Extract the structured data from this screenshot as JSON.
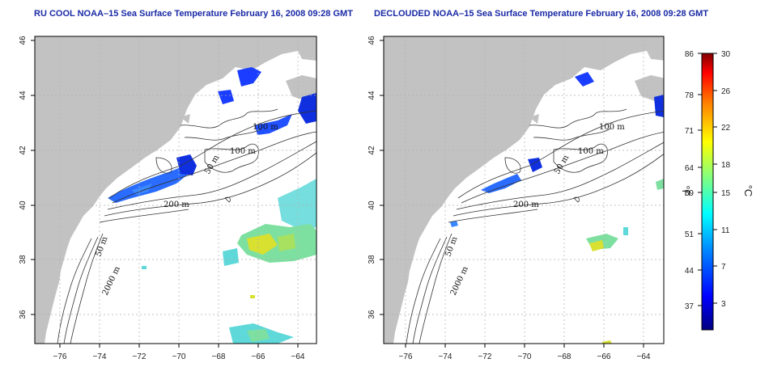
{
  "panels": [
    {
      "title": "RU COOL NOAA–15 Sea Surface Temperature February 16, 2008 09:28 GMT",
      "contour_labels": [
        "100 m",
        "100 m",
        "50 m",
        "200 m",
        "50 m",
        "2000 m"
      ]
    },
    {
      "title": "DECLOUDED NOAA–15 Sea Surface Temperature February 16, 2008 09:28 GMT",
      "contour_labels": [
        "100 m",
        "100 m",
        "50 m",
        "200 m",
        "50 m",
        "2000 m"
      ]
    }
  ],
  "axes": {
    "x_ticks": [
      "−76",
      "−74",
      "−72",
      "−70",
      "−68",
      "−66",
      "−64"
    ],
    "y_ticks": [
      "36",
      "38",
      "40",
      "42",
      "44",
      "46"
    ]
  },
  "colorbar": {
    "fahrenheit_ticks": [
      "86",
      "78",
      "71",
      "64",
      "59",
      "51",
      "44",
      "37"
    ],
    "celsius_ticks": [
      "30",
      "26",
      "22",
      "18",
      "15",
      "11",
      "7",
      "3"
    ],
    "unit_f": "°F",
    "unit_c": "°C",
    "colors": [
      "#000080",
      "#0000ff",
      "#0080ff",
      "#00ffff",
      "#80ff80",
      "#ffff00",
      "#ff8000",
      "#ff0000",
      "#800000"
    ]
  },
  "colors": {
    "land": "#c2c2c2",
    "grid": "#b0b0b0",
    "title": "#1a2aa6"
  }
}
